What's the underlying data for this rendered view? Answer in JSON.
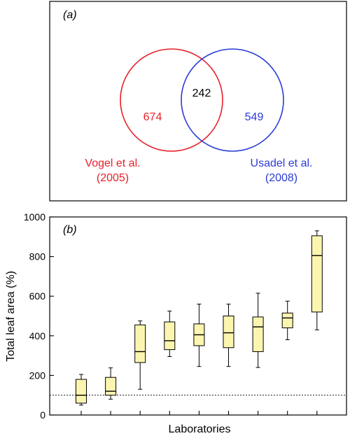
{
  "chart_data": [
    {
      "type": "venn",
      "panel_label": "(a)",
      "sets": [
        {
          "name_line1": "Vogel et al.",
          "name_line2": "(2005)",
          "unique": 674,
          "color": "#e8202a"
        },
        {
          "name_line1": "Usadel et al.",
          "name_line2": "(2008)",
          "unique": 549,
          "color": "#2a3bd6"
        }
      ],
      "intersection": 242
    },
    {
      "type": "boxplot",
      "panel_label": "(b)",
      "xlabel": "Laboratories",
      "ylabel": "Total leaf area (%)",
      "ylim": [
        0,
        1000
      ],
      "yticks": [
        "0",
        "200",
        "400",
        "600",
        "800",
        "1000"
      ],
      "reference_line": 100,
      "box_color": "#fbf5b0",
      "boxes": [
        {
          "min": 50,
          "q1": 60,
          "median": 100,
          "q3": 180,
          "max": 205
        },
        {
          "min": 80,
          "q1": 100,
          "median": 120,
          "q3": 190,
          "max": 238
        },
        {
          "min": 130,
          "q1": 265,
          "median": 320,
          "q3": 455,
          "max": 475
        },
        {
          "min": 295,
          "q1": 330,
          "median": 375,
          "q3": 470,
          "max": 525
        },
        {
          "min": 245,
          "q1": 350,
          "median": 405,
          "q3": 460,
          "max": 560
        },
        {
          "min": 245,
          "q1": 340,
          "median": 415,
          "q3": 500,
          "max": 560
        },
        {
          "min": 240,
          "q1": 320,
          "median": 445,
          "q3": 495,
          "max": 615
        },
        {
          "min": 380,
          "q1": 440,
          "median": 490,
          "q3": 515,
          "max": 575
        },
        {
          "min": 430,
          "q1": 520,
          "median": 805,
          "q3": 905,
          "max": 930
        }
      ]
    }
  ]
}
